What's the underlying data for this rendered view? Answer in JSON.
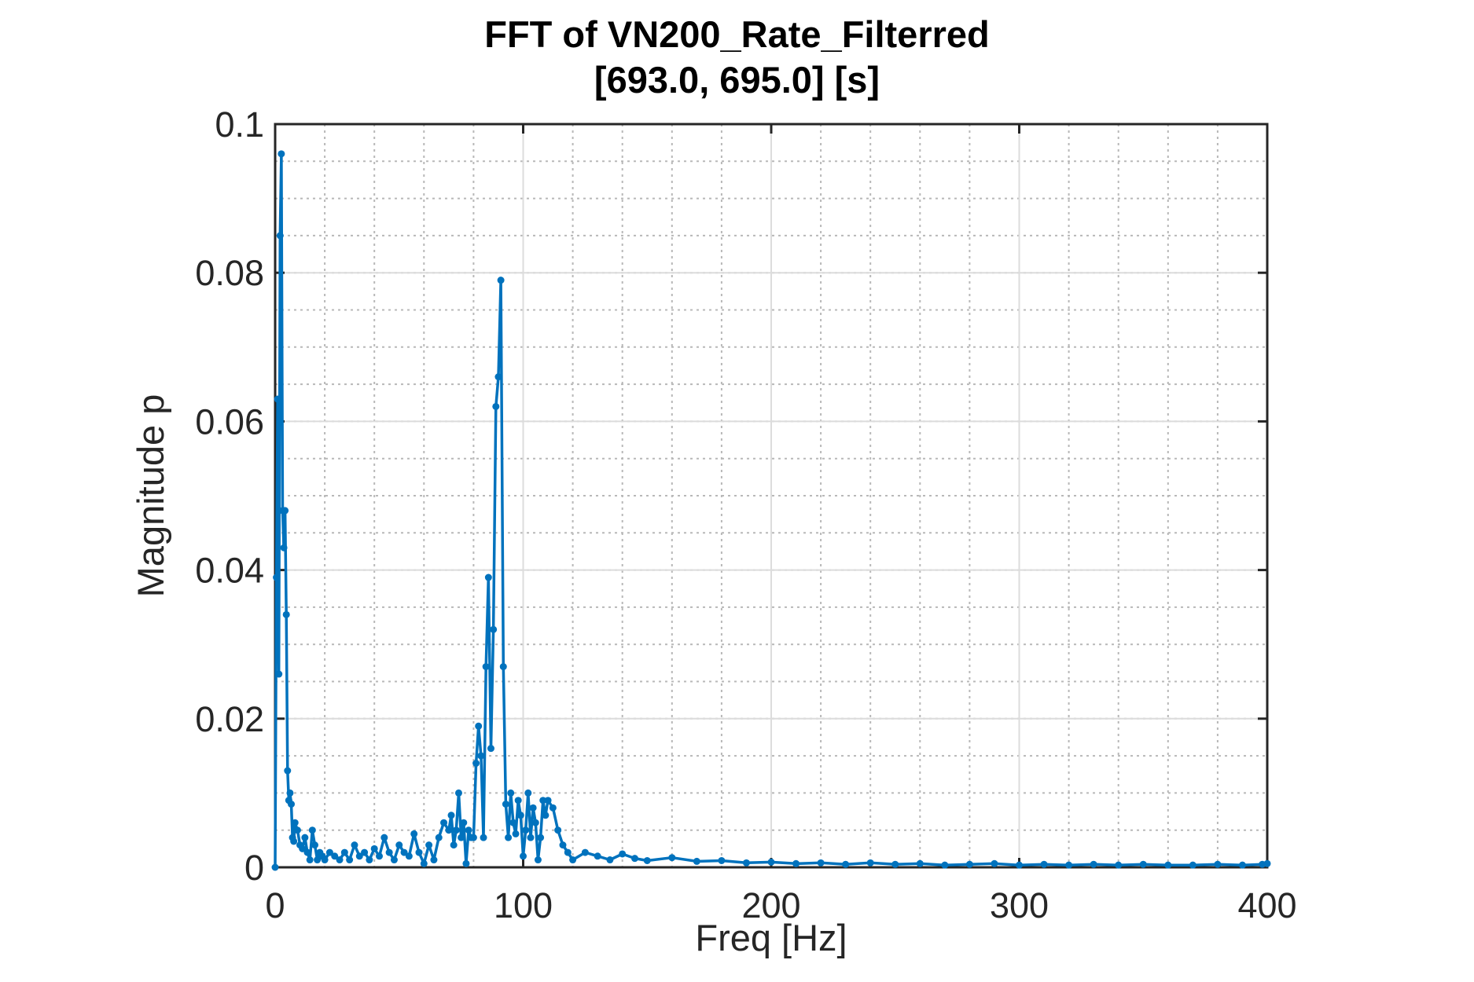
{
  "chart_data": {
    "type": "line",
    "title": "FFT of VN200_Rate_Filterred",
    "subtitle": "[693.0, 695.0] [s]",
    "xlabel": "Freq [Hz]",
    "ylabel": "Magnitude p",
    "xlim": [
      0,
      400
    ],
    "ylim": [
      0,
      0.1
    ],
    "xticks": [
      0,
      100,
      200,
      300,
      400
    ],
    "xtick_labels": [
      "0",
      "100",
      "200",
      "300",
      "400"
    ],
    "yticks": [
      0,
      0.02,
      0.04,
      0.06,
      0.08,
      0.1
    ],
    "ytick_labels": [
      "0",
      "0.02",
      "0.04",
      "0.06",
      "0.08",
      "0.1"
    ],
    "grid": true,
    "minor_grid": true,
    "line_color": "#0072BD",
    "marker": "dot",
    "series": [
      {
        "x": [
          0,
          0.5,
          1,
          1.5,
          2,
          2.5,
          3,
          3.5,
          4,
          4.5,
          5,
          5.5,
          6,
          6.5,
          7,
          7.5,
          8,
          9,
          10,
          11,
          12,
          13,
          14,
          15,
          16,
          17,
          18,
          19,
          20,
          22,
          24,
          26,
          28,
          30,
          32,
          34,
          36,
          38,
          40,
          42,
          44,
          46,
          48,
          50,
          52,
          54,
          56,
          58,
          60,
          62,
          64,
          66,
          68,
          70,
          71,
          72,
          73,
          74,
          75,
          76,
          77,
          78,
          79,
          80,
          81,
          82,
          83,
          84,
          85,
          86,
          87,
          88,
          89,
          90,
          91,
          92,
          93,
          94,
          95,
          96,
          97,
          98,
          99,
          100,
          101,
          102,
          103,
          104,
          105,
          106,
          107,
          108,
          109,
          110,
          112,
          114,
          116,
          118,
          120,
          125,
          130,
          135,
          140,
          145,
          150,
          160,
          170,
          180,
          190,
          200,
          210,
          220,
          230,
          240,
          250,
          260,
          270,
          280,
          290,
          300,
          310,
          320,
          330,
          340,
          350,
          360,
          370,
          380,
          390,
          398,
          400
        ],
        "y": [
          0,
          0.039,
          0.063,
          0.026,
          0.085,
          0.096,
          0.048,
          0.043,
          0.048,
          0.034,
          0.013,
          0.009,
          0.01,
          0.0085,
          0.004,
          0.0035,
          0.006,
          0.005,
          0.003,
          0.0025,
          0.004,
          0.002,
          0.001,
          0.005,
          0.003,
          0.001,
          0.002,
          0.0015,
          0.001,
          0.002,
          0.0015,
          0.001,
          0.002,
          0.001,
          0.003,
          0.0015,
          0.002,
          0.001,
          0.0025,
          0.0015,
          0.004,
          0.002,
          0.001,
          0.003,
          0.002,
          0.0015,
          0.0045,
          0.002,
          0.0005,
          0.003,
          0.001,
          0.004,
          0.006,
          0.005,
          0.007,
          0.003,
          0.005,
          0.01,
          0.004,
          0.006,
          0.0005,
          0.005,
          0.004,
          0.004,
          0.014,
          0.019,
          0.015,
          0.004,
          0.027,
          0.039,
          0.016,
          0.032,
          0.062,
          0.066,
          0.079,
          0.027,
          0.0085,
          0.004,
          0.01,
          0.006,
          0.0045,
          0.009,
          0.007,
          0.0015,
          0.005,
          0.01,
          0.004,
          0.008,
          0.006,
          0.001,
          0.004,
          0.009,
          0.007,
          0.009,
          0.008,
          0.005,
          0.003,
          0.002,
          0.001,
          0.002,
          0.0015,
          0.001,
          0.0018,
          0.0012,
          0.0009,
          0.0013,
          0.0008,
          0.0009,
          0.0006,
          0.0007,
          0.0005,
          0.0006,
          0.0004,
          0.0006,
          0.0004,
          0.0005,
          0.0003,
          0.0004,
          0.0005,
          0.0003,
          0.0004,
          0.0003,
          0.0004,
          0.0003,
          0.0004,
          0.0003,
          0.0003,
          0.0004,
          0.0003,
          0.0004,
          0.0005
        ]
      }
    ]
  }
}
